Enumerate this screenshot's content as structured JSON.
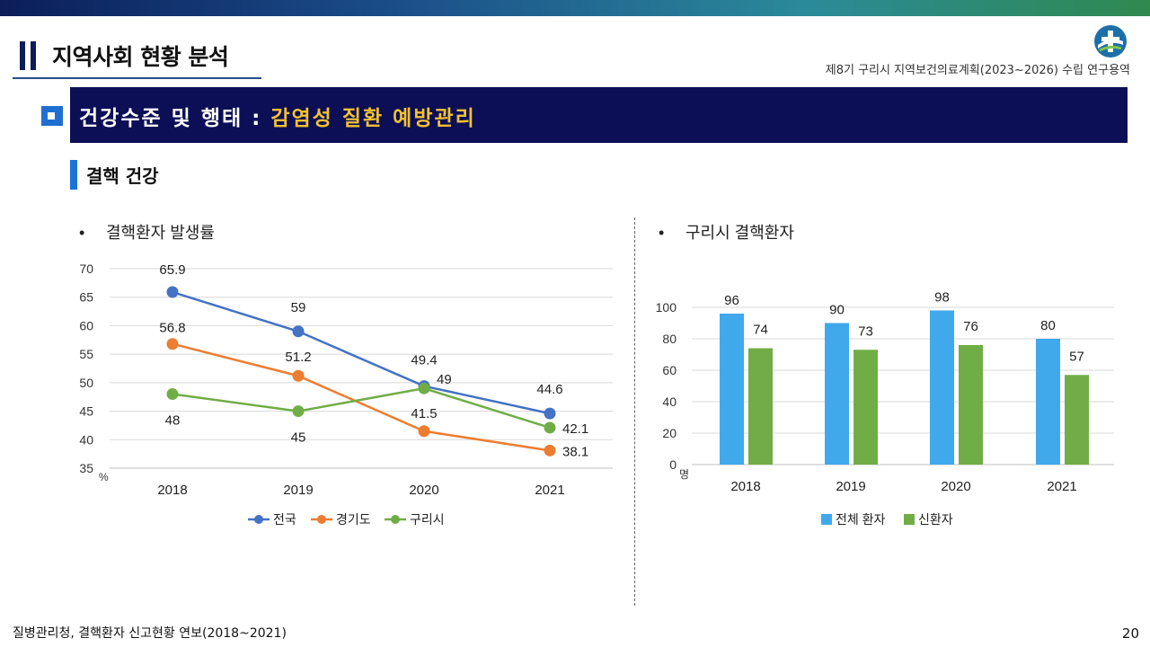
{
  "header": {
    "page_title": "지역사회 현황 분석",
    "project_name": "제8기 구리시 지역보건의료계획(2023~2026) 수립 연구용역",
    "logo_icon": "city-logo-icon"
  },
  "section": {
    "title_prefix": "건강수준 및 행태 : ",
    "title_highlight": "감염성 질환 예방관리",
    "bar_color": "#0c0f55",
    "highlight_color": "#f2c230"
  },
  "subsection": {
    "title": "결핵 건강"
  },
  "chart_data": [
    {
      "type": "line",
      "title": "결핵환자 발생률",
      "ylabel": "%",
      "ylim": [
        35,
        70
      ],
      "yticks": [
        35,
        40,
        45,
        50,
        55,
        60,
        65,
        70
      ],
      "categories": [
        "2018",
        "2019",
        "2020",
        "2021"
      ],
      "grid": true,
      "legend": "bottom",
      "series": [
        {
          "name": "전국",
          "color": "#4472c4",
          "values": [
            65.9,
            59,
            49.4,
            44.6
          ],
          "labels": [
            "65.9",
            "59",
            "49.4",
            "44.6"
          ]
        },
        {
          "name": "경기도",
          "color": "#ed7d31",
          "values": [
            56.8,
            51.2,
            41.5,
            38.1
          ],
          "labels": [
            "56.8",
            "51.2",
            "41.5",
            "38.1"
          ]
        },
        {
          "name": "구리시",
          "color": "#70ad47",
          "values": [
            48,
            45,
            49,
            42.1
          ],
          "labels": [
            "48",
            "45",
            "49",
            "42.1"
          ]
        }
      ]
    },
    {
      "type": "bar",
      "title": "구리시 결핵환자",
      "ylabel": "명",
      "ylim": [
        0,
        100
      ],
      "yticks": [
        0,
        20,
        40,
        60,
        80,
        100
      ],
      "categories": [
        "2018",
        "2019",
        "2020",
        "2021"
      ],
      "grid": true,
      "legend": "bottom",
      "series": [
        {
          "name": "전체 환자",
          "color": "#3fa9ec",
          "values": [
            96,
            90,
            98,
            80
          ],
          "labels": [
            "96",
            "90",
            "98",
            "80"
          ]
        },
        {
          "name": "신환자",
          "color": "#70ad47",
          "values": [
            74,
            73,
            76,
            57
          ],
          "labels": [
            "74",
            "73",
            "76",
            "57"
          ]
        }
      ]
    }
  ],
  "footer": {
    "source": "질병관리청, 결핵환자 신고현황 연보(2018~2021)",
    "page_number": "20"
  }
}
